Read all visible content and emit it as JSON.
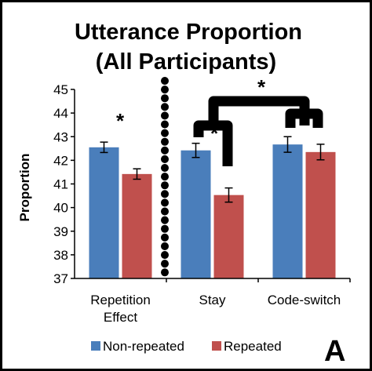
{
  "chart_data": {
    "type": "bar",
    "title": [
      "Utterance Proportion",
      "(All Participants)"
    ],
    "ylabel": "Proportion",
    "xlabel": "",
    "ylim": [
      37,
      45
    ],
    "yticks": [
      "37",
      "38",
      "39",
      "40",
      "41",
      "42",
      "43",
      "44",
      "45"
    ],
    "categories": [
      [
        "Repetition",
        "Effect"
      ],
      [
        "Stay"
      ],
      [
        "Code-switch"
      ]
    ],
    "series": [
      {
        "name": "Non-repeated",
        "color": "#4a7ebb",
        "values": [
          42.55,
          42.42,
          42.67
        ],
        "errors": [
          0.22,
          0.3,
          0.33
        ]
      },
      {
        "name": "Repeated",
        "color": "#c0504d",
        "values": [
          41.42,
          40.53,
          42.35
        ],
        "errors": [
          0.22,
          0.3,
          0.33
        ]
      }
    ],
    "annotations": [
      "*",
      "*",
      "*"
    ],
    "panel_label": "A",
    "grid": false,
    "legend_position": "bottom"
  }
}
